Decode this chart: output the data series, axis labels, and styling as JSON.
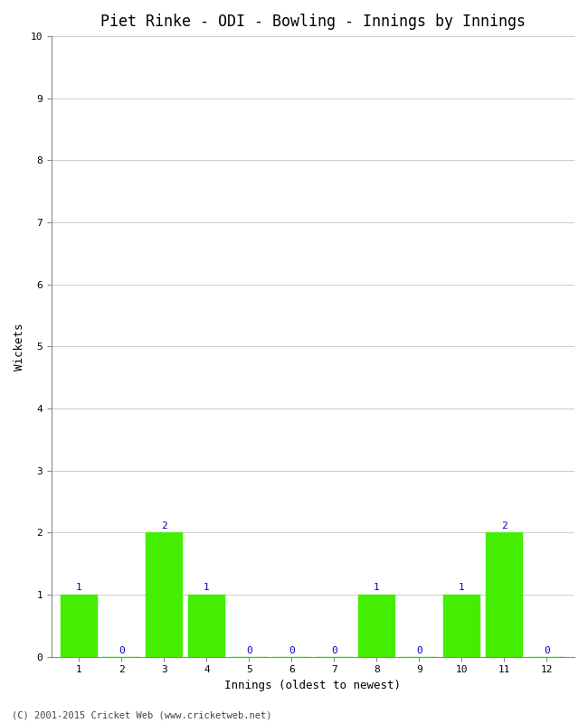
{
  "title": "Piet Rinke - ODI - Bowling - Innings by Innings",
  "xlabel": "Innings (oldest to newest)",
  "ylabel": "Wickets",
  "categories": [
    1,
    2,
    3,
    4,
    5,
    6,
    7,
    8,
    9,
    10,
    11,
    12
  ],
  "values": [
    1,
    0,
    2,
    1,
    0,
    0,
    0,
    1,
    0,
    1,
    2,
    0
  ],
  "bar_color": "#44ee00",
  "bar_edge_color": "#44ee00",
  "label_color": "#0000cc",
  "ylim": [
    0,
    10
  ],
  "yticks": [
    0,
    1,
    2,
    3,
    4,
    5,
    6,
    7,
    8,
    9,
    10
  ],
  "background_color": "#ffffff",
  "grid_color": "#cccccc",
  "footer": "(C) 2001-2015 Cricket Web (www.cricketweb.net)",
  "title_fontsize": 12,
  "axis_label_fontsize": 9,
  "tick_fontsize": 8,
  "bar_label_fontsize": 8,
  "bar_width": 0.88,
  "figwidth": 6.5,
  "figheight": 8.0,
  "dpi": 100
}
